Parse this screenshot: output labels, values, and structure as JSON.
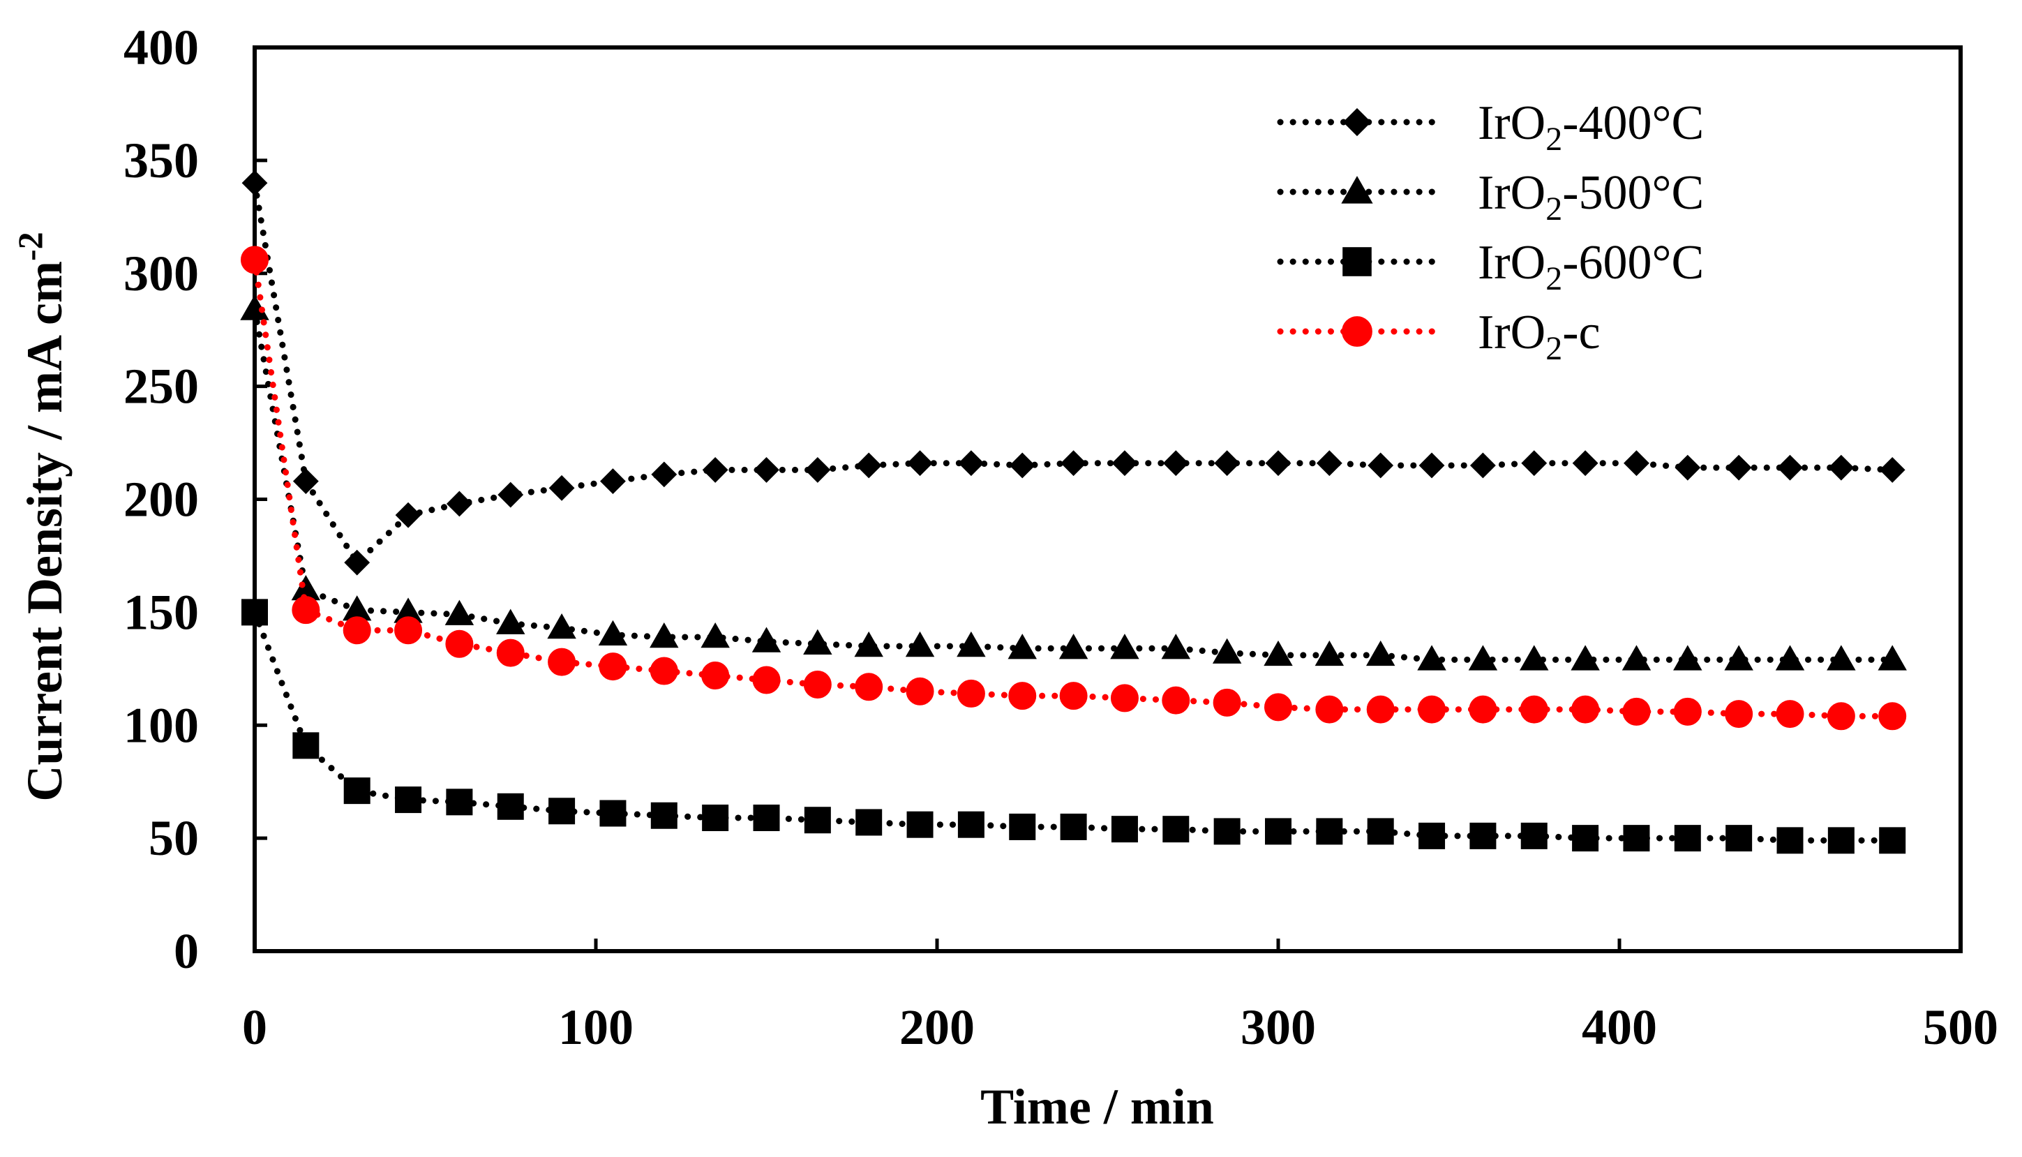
{
  "chart_data": {
    "type": "line",
    "title": "",
    "xlabel": "Time  / min",
    "ylabel": "Current Density / mA cm",
    "ylabel_superscript": "-2",
    "xlim": [
      0,
      500
    ],
    "ylim": [
      0,
      400
    ],
    "xticks": [
      0,
      100,
      200,
      300,
      400,
      500
    ],
    "yticks": [
      0,
      50,
      100,
      150,
      200,
      250,
      300,
      350,
      400
    ],
    "grid": false,
    "legend_position": "top-right",
    "x": [
      0,
      15,
      30,
      45,
      60,
      75,
      90,
      105,
      120,
      135,
      150,
      165,
      180,
      195,
      210,
      225,
      240,
      255,
      270,
      285,
      300,
      315,
      330,
      345,
      360,
      375,
      390,
      405,
      420,
      435,
      450,
      465,
      480
    ],
    "series": [
      {
        "name": "IrO2-400°C",
        "label_main": "IrO",
        "label_sub": "2",
        "label_rest": "-400°C",
        "marker": "diamond",
        "color": "#000000",
        "values": [
          340,
          208,
          172,
          193,
          198,
          202,
          205,
          208,
          211,
          213,
          213,
          213,
          215,
          216,
          216,
          215,
          216,
          216,
          216,
          216,
          216,
          216,
          215,
          215,
          215,
          216,
          216,
          216,
          214,
          214,
          214,
          214,
          213
        ]
      },
      {
        "name": "IrO2-500°C",
        "label_main": "IrO",
        "label_sub": "2",
        "label_rest": "-500°C",
        "marker": "triangle",
        "color": "#000000",
        "values": [
          284,
          160,
          151,
          150,
          149,
          145,
          143,
          140,
          139,
          139,
          137,
          136,
          135,
          135,
          135,
          134,
          134,
          134,
          134,
          132,
          131,
          131,
          131,
          129,
          129,
          129,
          129,
          129,
          129,
          129,
          129,
          129,
          129
        ]
      },
      {
        "name": "IrO2-600°C",
        "label_main": "IrO",
        "label_sub": "2",
        "label_rest": "-600°C",
        "marker": "square",
        "color": "#000000",
        "values": [
          150,
          91,
          71,
          67,
          66,
          64,
          62,
          61,
          60,
          59,
          59,
          58,
          57,
          56,
          56,
          55,
          55,
          54,
          54,
          53,
          53,
          53,
          53,
          51,
          51,
          51,
          50,
          50,
          50,
          50,
          49,
          49,
          49
        ]
      },
      {
        "name": "IrO2-c",
        "label_main": "IrO",
        "label_sub": "2",
        "label_rest": "-c",
        "marker": "circle",
        "color": "#ff0000",
        "values": [
          306,
          151,
          142,
          142,
          136,
          132,
          128,
          126,
          124,
          122,
          120,
          118,
          117,
          115,
          114,
          113,
          113,
          112,
          111,
          110,
          108,
          107,
          107,
          107,
          107,
          107,
          107,
          106,
          106,
          105,
          105,
          104,
          104
        ]
      }
    ]
  }
}
